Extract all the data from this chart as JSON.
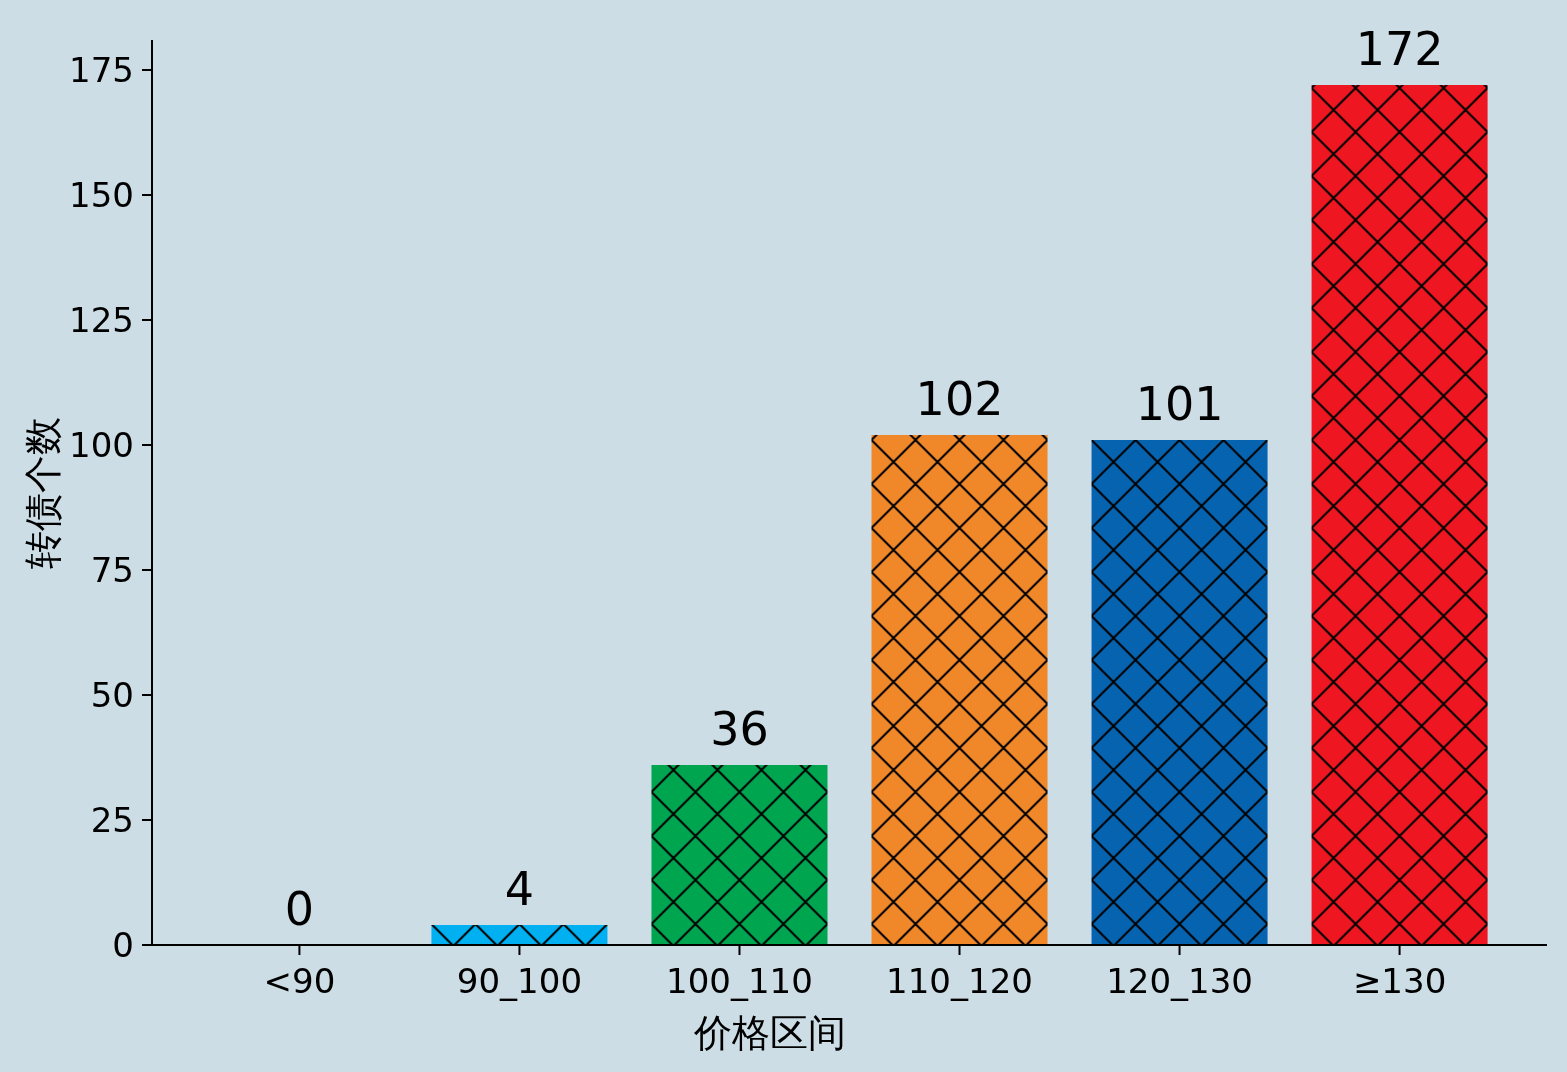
{
  "chart_data": {
    "type": "bar",
    "xlabel": "价格区间",
    "ylabel": "转债个数",
    "categories": [
      "<90",
      "90_100",
      "100_110",
      "110_120",
      "120_130",
      "≥130"
    ],
    "values": [
      0,
      4,
      36,
      102,
      101,
      172
    ],
    "colors": [
      "#7f7f7f",
      "#00b0f0",
      "#00a550",
      "#f0882a",
      "#0563b0",
      "#ee1620"
    ],
    "ylim": [
      0,
      181
    ],
    "yticks": [
      0,
      25,
      50,
      75,
      100,
      125,
      150,
      175
    ],
    "data_labels": true
  }
}
